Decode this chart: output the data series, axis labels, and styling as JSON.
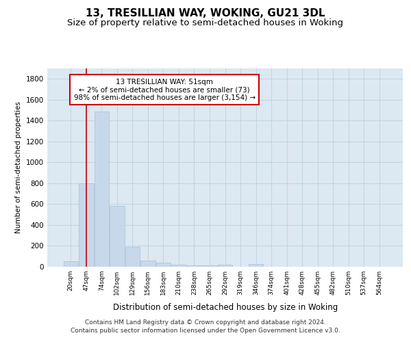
{
  "title": "13, TRESILLIAN WAY, WOKING, GU21 3DL",
  "subtitle": "Size of property relative to semi-detached houses in Woking",
  "xlabel": "Distribution of semi-detached houses by size in Woking",
  "ylabel": "Number of semi-detached properties",
  "categories": [
    "20sqm",
    "47sqm",
    "74sqm",
    "102sqm",
    "129sqm",
    "156sqm",
    "183sqm",
    "210sqm",
    "238sqm",
    "265sqm",
    "292sqm",
    "319sqm",
    "346sqm",
    "374sqm",
    "401sqm",
    "428sqm",
    "455sqm",
    "482sqm",
    "510sqm",
    "537sqm",
    "564sqm"
  ],
  "values": [
    50,
    800,
    1490,
    580,
    190,
    60,
    38,
    18,
    15,
    15,
    20,
    0,
    25,
    0,
    0,
    0,
    0,
    0,
    0,
    0,
    0
  ],
  "bar_color": "#c8d8eb",
  "bar_edge_color": "#a8c0d8",
  "annotation_title": "13 TRESILLIAN WAY: 51sqm",
  "annotation_line1": "← 2% of semi-detached houses are smaller (73)",
  "annotation_line2": "98% of semi-detached houses are larger (3,154) →",
  "annotation_box_color": "#ffffff",
  "annotation_box_edge_color": "#cc0000",
  "vline_color": "#cc0000",
  "vline_x": 1.0,
  "ylim": [
    0,
    1900
  ],
  "yticks": [
    0,
    200,
    400,
    600,
    800,
    1000,
    1200,
    1400,
    1600,
    1800
  ],
  "footer_line1": "Contains HM Land Registry data © Crown copyright and database right 2024.",
  "footer_line2": "Contains public sector information licensed under the Open Government Licence v3.0.",
  "plot_bg_color": "#dce8f2",
  "fig_bg_color": "#ffffff",
  "grid_color": "#b8ccd8",
  "title_fontsize": 11,
  "subtitle_fontsize": 9.5
}
